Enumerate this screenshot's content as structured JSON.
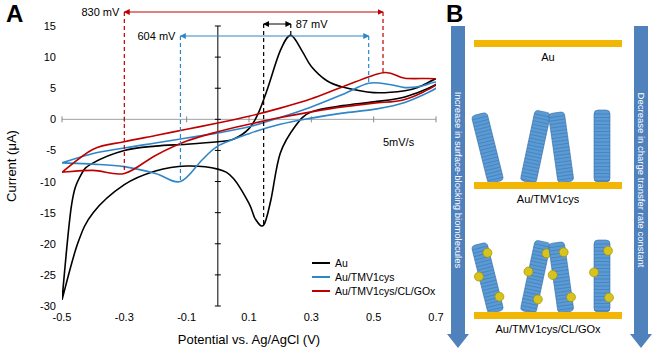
{
  "chart_data": {
    "type": "line",
    "panel_label": "A",
    "x_label": "Potential vs. Ag/AgCl (V)",
    "y_label": "Current (μA)",
    "xlim": [
      -0.5,
      0.7
    ],
    "xticks": [
      -0.5,
      -0.3,
      -0.1,
      0.1,
      0.3,
      0.5,
      0.7
    ],
    "ylim": [
      -30,
      15
    ],
    "yticks": [
      -30,
      -25,
      -20,
      -15,
      -10,
      -5,
      0,
      5,
      10,
      15
    ],
    "grid": false,
    "legend": "lower right",
    "annotations": [
      {
        "text": "830 mV",
        "x": [
          -0.3,
          0.53
        ],
        "y": [
          -8.7,
          7.5
        ],
        "color": "#c00000"
      },
      {
        "text": "604 mV",
        "x": [
          -0.12,
          0.484
        ],
        "y": [
          -10,
          5.8
        ],
        "color": "#2e86c9"
      },
      {
        "text": "87 mV",
        "x": [
          0.147,
          0.234
        ],
        "y": [
          -17,
          13.5
        ],
        "color": "#000000"
      },
      {
        "text": "5mV/s"
      }
    ],
    "series": [
      {
        "name": "Au",
        "color": "#000000",
        "x": [
          -0.5,
          -0.47,
          -0.44,
          -0.4,
          -0.3,
          -0.2,
          -0.1,
          0,
          0.05,
          0.1,
          0.13,
          0.16,
          0.2,
          0.234,
          0.27,
          0.3,
          0.35,
          0.4,
          0.5,
          0.6,
          0.65,
          0.7,
          0.7,
          0.6,
          0.5,
          0.4,
          0.3,
          0.25,
          0.2,
          0.17,
          0.147,
          0.12,
          0.1,
          0.05,
          0,
          -0.1,
          -0.2,
          -0.3,
          -0.4,
          -0.45,
          -0.5
        ],
        "values": [
          -29,
          -14,
          -9,
          -7,
          -5,
          -4.3,
          -4,
          -3.6,
          -3.2,
          -1.5,
          1,
          5,
          11,
          13.5,
          11,
          8.5,
          6.2,
          5.2,
          4.3,
          4.6,
          5.3,
          6.5,
          5.6,
          3.6,
          2.8,
          2.2,
          1.2,
          -1,
          -5.5,
          -13,
          -17,
          -16,
          -13.5,
          -9.5,
          -8,
          -7.5,
          -8.3,
          -10.5,
          -15,
          -20,
          -29
        ]
      },
      {
        "name": "Au/TMV1cys",
        "color": "#2e86c9",
        "x": [
          -0.5,
          -0.4,
          -0.3,
          -0.2,
          -0.1,
          0,
          0.1,
          0.2,
          0.3,
          0.4,
          0.484,
          0.55,
          0.6,
          0.65,
          0.7,
          0.7,
          0.6,
          0.5,
          0.4,
          0.3,
          0.2,
          0.1,
          0,
          -0.05,
          -0.12,
          -0.2,
          -0.3,
          -0.4,
          -0.5
        ],
        "values": [
          -7,
          -5.5,
          -4.6,
          -3.8,
          -3,
          -2.2,
          -1.2,
          0.3,
          2,
          4,
          5.8,
          5.6,
          5.1,
          5.3,
          6,
          5,
          2.7,
          1.6,
          1,
          0.2,
          -0.8,
          -2.3,
          -4.3,
          -6.5,
          -10,
          -8.7,
          -7.6,
          -7.2,
          -7
        ]
      },
      {
        "name": "Au/TMV1cys/CL/GOx",
        "color": "#c00000",
        "x": [
          -0.5,
          -0.4,
          -0.3,
          -0.2,
          -0.1,
          0,
          0.1,
          0.2,
          0.3,
          0.4,
          0.53,
          0.6,
          0.7,
          0.7,
          0.6,
          0.5,
          0.4,
          0.3,
          0.2,
          0.1,
          0,
          -0.1,
          -0.2,
          -0.3,
          -0.4,
          -0.5
        ],
        "values": [
          -8.5,
          -4.8,
          -3.6,
          -2.6,
          -1.6,
          -0.6,
          0.5,
          1.8,
          3.3,
          5.2,
          7.5,
          6.6,
          6.5,
          5.5,
          3.2,
          2.6,
          2,
          1.2,
          0.3,
          -0.8,
          -2,
          -3.5,
          -5.8,
          -8.7,
          -8.2,
          -8.5
        ]
      }
    ]
  },
  "diagram": {
    "panel_label": "B",
    "layers": [
      {
        "label": "Au"
      },
      {
        "label": "Au/TMV1cys"
      },
      {
        "label": "Au/TMV1cys/CL/GOx"
      }
    ],
    "arrows": [
      {
        "label": "Increase in surface-blocking biomolecules"
      },
      {
        "label": "Decrease in charge transfer rate constant"
      }
    ]
  }
}
